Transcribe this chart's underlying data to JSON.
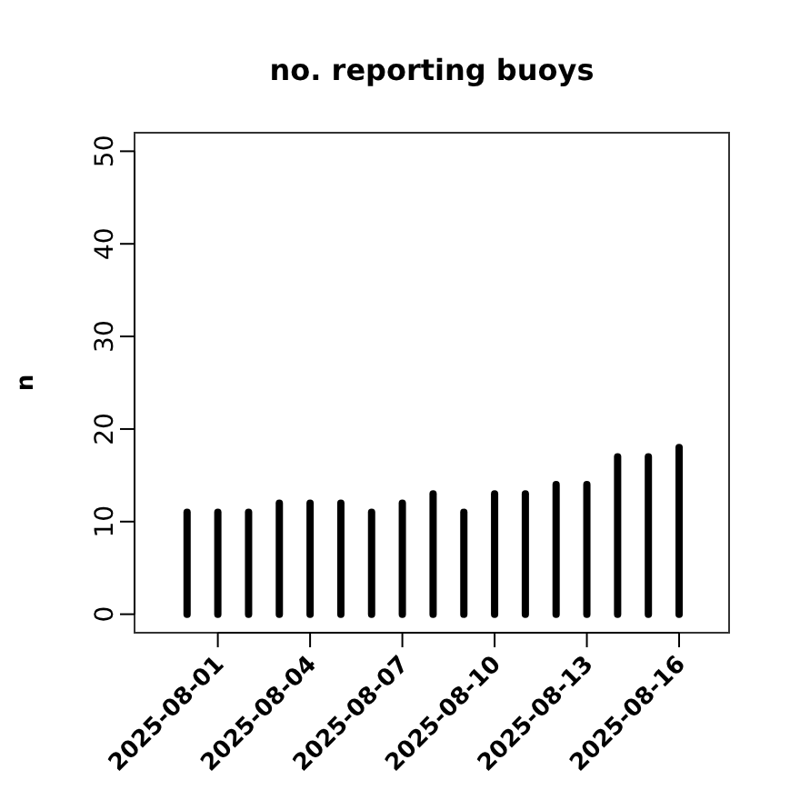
{
  "chart_data": {
    "type": "bar",
    "title": "no. reporting buoys",
    "ylabel": "n",
    "x": [
      "2025-07-31",
      "2025-08-01",
      "2025-08-02",
      "2025-08-03",
      "2025-08-04",
      "2025-08-05",
      "2025-08-06",
      "2025-08-07",
      "2025-08-08",
      "2025-08-09",
      "2025-08-10",
      "2025-08-11",
      "2025-08-12",
      "2025-08-13",
      "2025-08-14",
      "2025-08-15",
      "2025-08-16"
    ],
    "values": [
      11,
      11,
      11,
      12,
      12,
      12,
      11,
      12,
      13,
      11,
      13,
      13,
      14,
      14,
      17,
      17,
      18
    ],
    "color": "#000000",
    "xlim": [
      "2025-07-29T07:00",
      "2025-08-17T15:00"
    ],
    "xticks": [
      "2025-08-01",
      "2025-08-04",
      "2025-08-07",
      "2025-08-10",
      "2025-08-13",
      "2025-08-16"
    ],
    "ylim": [
      -2,
      52
    ],
    "yticks": [
      0,
      10,
      20,
      30,
      40,
      50
    ]
  }
}
